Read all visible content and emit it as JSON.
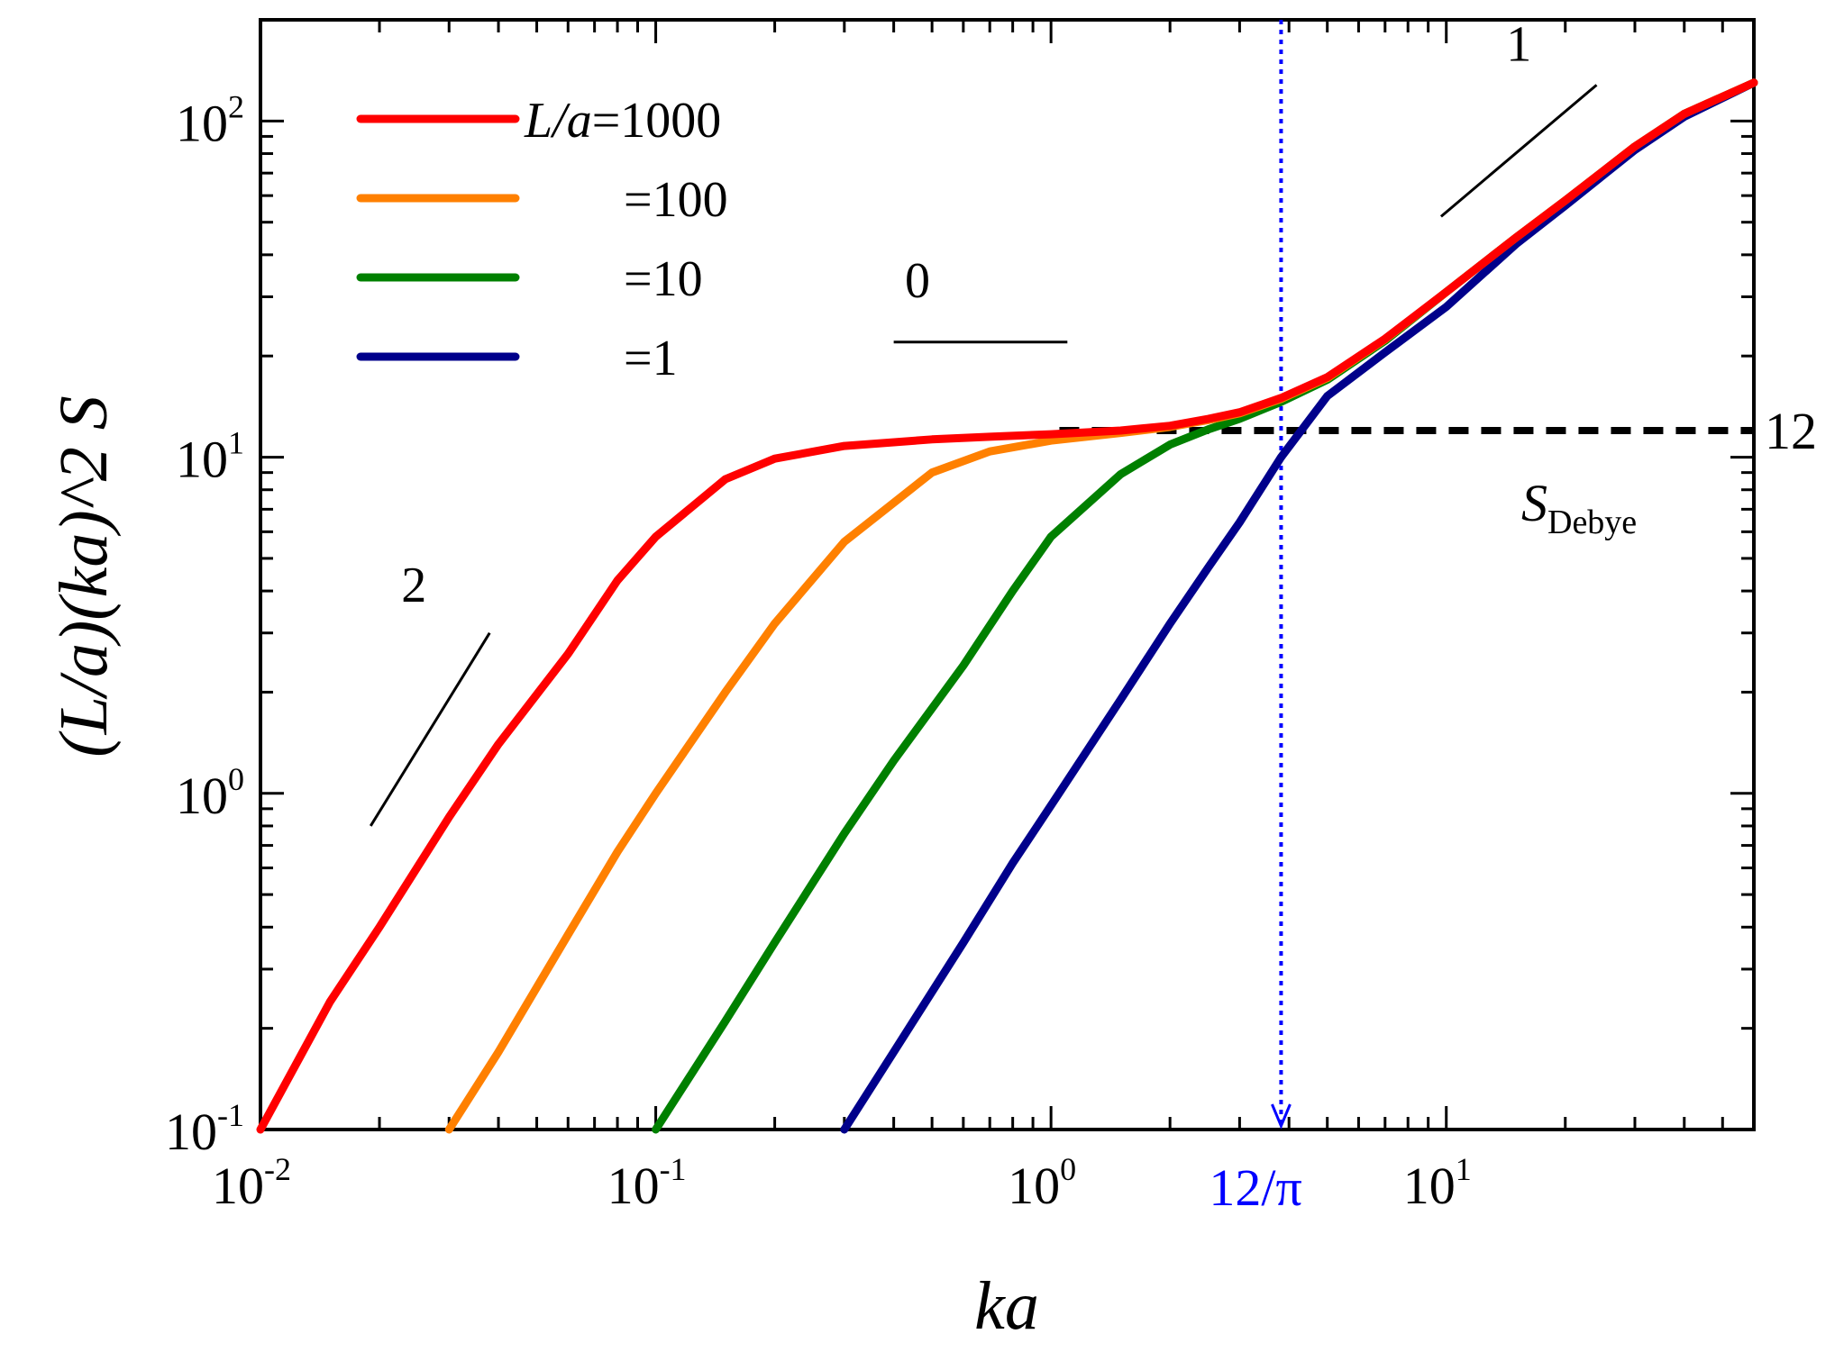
{
  "chart_data": {
    "type": "line",
    "xscale": "log",
    "yscale": "log",
    "xlim": [
      0.01,
      60
    ],
    "ylim": [
      0.1,
      200
    ],
    "xlabel": "ka",
    "ylabel": "(L/a)(ka)^2 S",
    "x_ticks": [
      {
        "base": "10",
        "exp": "-2"
      },
      {
        "base": "10",
        "exp": "-1"
      },
      {
        "base": "10",
        "exp": "0"
      },
      {
        "base": "10",
        "exp": "1"
      }
    ],
    "y_ticks": [
      {
        "base": "10",
        "exp": "-1"
      },
      {
        "base": "10",
        "exp": "0"
      },
      {
        "base": "10",
        "exp": "1"
      },
      {
        "base": "10",
        "exp": "2"
      }
    ],
    "legend": {
      "prefix": "L/a",
      "entries": [
        {
          "label": "=1000",
          "color": "#ff0000"
        },
        {
          "label": "=100",
          "color": "#ff8000"
        },
        {
          "label": "=10",
          "color": "#008000"
        },
        {
          "label": "=1",
          "color": "#00008b"
        }
      ]
    },
    "series": [
      {
        "name": "L/a=1000",
        "color": "#ff0000",
        "x": [
          0.01,
          0.015,
          0.02,
          0.03,
          0.04,
          0.06,
          0.08,
          0.1,
          0.15,
          0.2,
          0.3,
          0.5,
          0.7,
          1,
          1.5,
          2,
          2.5,
          3,
          3.82,
          5,
          7,
          10,
          15,
          20,
          30,
          40,
          60
        ],
        "y": [
          0.1,
          0.24,
          0.4,
          0.85,
          1.4,
          2.6,
          4.3,
          5.8,
          8.6,
          9.9,
          10.8,
          11.3,
          11.5,
          11.7,
          12.0,
          12.4,
          13.0,
          13.6,
          15.0,
          17.3,
          22.5,
          31,
          45,
          58,
          84,
          105,
          130
        ]
      },
      {
        "name": "L/a=100",
        "color": "#ff8000",
        "x": [
          0.03,
          0.04,
          0.06,
          0.08,
          0.1,
          0.15,
          0.2,
          0.3,
          0.5,
          0.7,
          1,
          1.5,
          2,
          2.5,
          3,
          3.82,
          5,
          7,
          10,
          15,
          20,
          30,
          40,
          60
        ],
        "y": [
          0.1,
          0.17,
          0.38,
          0.67,
          1.0,
          2.0,
          3.2,
          5.6,
          9.0,
          10.4,
          11.2,
          11.8,
          12.3,
          12.9,
          13.5,
          14.9,
          17.2,
          22.4,
          31,
          45,
          58,
          84,
          105,
          130
        ]
      },
      {
        "name": "L/a=10",
        "color": "#008000",
        "x": [
          0.1,
          0.15,
          0.2,
          0.3,
          0.4,
          0.6,
          0.8,
          1,
          1.5,
          2,
          2.5,
          3,
          3.82,
          5,
          7,
          10,
          15,
          20,
          30,
          40,
          60
        ],
        "y": [
          0.1,
          0.21,
          0.36,
          0.76,
          1.25,
          2.4,
          4.0,
          5.8,
          8.9,
          10.9,
          12.1,
          13.0,
          14.6,
          17.0,
          22.2,
          31,
          45,
          58,
          84,
          105,
          130
        ]
      },
      {
        "name": "L/a=1",
        "color": "#00008b",
        "x": [
          0.3,
          0.4,
          0.6,
          0.8,
          1,
          1.5,
          2,
          2.5,
          3,
          3.82,
          5,
          7,
          10,
          15,
          20,
          30,
          40,
          60
        ],
        "y": [
          0.1,
          0.17,
          0.36,
          0.62,
          0.92,
          1.9,
          3.2,
          4.7,
          6.4,
          10.0,
          15.2,
          20.5,
          28,
          43,
          56,
          82,
          103,
          130
        ]
      }
    ],
    "reference_lines": {
      "debye_value": 12,
      "debye_label_base": "S",
      "debye_label_sub": "Debye",
      "debye_right_label": "12",
      "crossover_x": 3.82,
      "crossover_label": "12/π"
    },
    "slope_marks": [
      {
        "label": "2",
        "x": [
          0.019,
          0.038
        ],
        "y": [
          0.8,
          3.0
        ]
      },
      {
        "label": "0",
        "x": [
          0.4,
          1.1
        ],
        "y": [
          22,
          22
        ]
      },
      {
        "label": "1",
        "x": [
          9.7,
          24
        ],
        "y": [
          52,
          128
        ]
      }
    ]
  }
}
